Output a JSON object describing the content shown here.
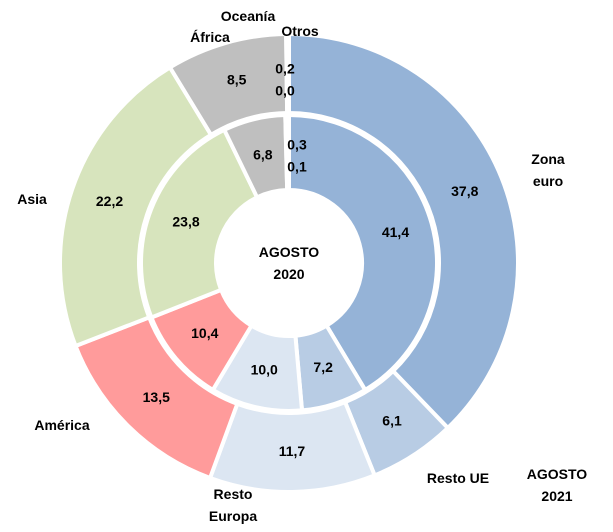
{
  "chart_data": {
    "type": "donut",
    "categories": [
      "Zona euro",
      "Resto UE",
      "Resto Europa",
      "América",
      "Asia",
      "África",
      "Oceanía",
      "Otros"
    ],
    "colors": [
      "#95b3d7",
      "#b8cce4",
      "#dce6f2",
      "#ff9b9b",
      "#d7e4bd",
      "#bfbfbf",
      "#bfbfbf",
      "#95b3d7"
    ],
    "series": [
      {
        "name": "AGOSTO 2020",
        "values": [
          41.4,
          7.2,
          10.0,
          10.4,
          23.8,
          6.8,
          0.3,
          0.1
        ],
        "value_labels": [
          "41,4",
          "7,2",
          "10,0",
          "10,4",
          "23,8",
          "6,8",
          "0,3",
          "0,1"
        ]
      },
      {
        "name": "AGOSTO 2021",
        "values": [
          37.8,
          6.1,
          11.7,
          13.5,
          22.2,
          8.5,
          0.2,
          0.0
        ],
        "value_labels": [
          "37,8",
          "6,1",
          "11,7",
          "13,5",
          "22,2",
          "8,5",
          "0,2",
          "0,0"
        ]
      }
    ]
  }
}
